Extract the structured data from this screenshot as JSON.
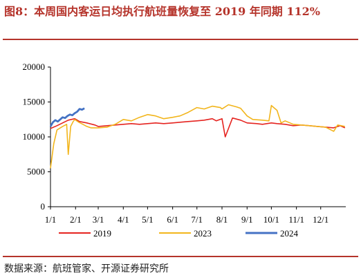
{
  "header": {
    "title": "图8：本周国内客运日均执行航班量恢复至 2019 年同期 112%"
  },
  "footer": {
    "source": "数据来源：航班管家、开源证券研究所"
  },
  "chart_data": {
    "type": "line",
    "title": "",
    "xlabel": "",
    "ylabel": "",
    "x_ticks": [
      "1/1",
      "2/1",
      "3/1",
      "4/1",
      "5/1",
      "6/1",
      "7/1",
      "8/1",
      "9/1",
      "10/1",
      "11/1",
      "12/1"
    ],
    "x_range_days": [
      0,
      365
    ],
    "ylim": [
      0,
      20000
    ],
    "y_ticks": [
      0,
      5000,
      10000,
      15000,
      20000
    ],
    "legend_position": "bottom",
    "grid": false,
    "series": [
      {
        "name": "2019",
        "color": "#e5231f",
        "x": [
          0,
          8,
          15,
          22,
          30,
          36,
          45,
          55,
          59,
          70,
          80,
          90,
          100,
          110,
          120,
          130,
          140,
          151,
          160,
          170,
          181,
          190,
          200,
          205,
          212,
          216,
          225,
          235,
          243,
          255,
          262,
          273,
          280,
          290,
          300,
          310,
          320,
          330,
          340,
          350,
          358,
          364
        ],
        "y": [
          11200,
          11600,
          12000,
          12400,
          12600,
          12200,
          12000,
          11700,
          11500,
          11600,
          11700,
          11800,
          11900,
          11800,
          11900,
          12000,
          11900,
          12000,
          12100,
          12200,
          12300,
          12400,
          12600,
          12300,
          12600,
          10000,
          12700,
          12400,
          12000,
          11900,
          11800,
          12000,
          11900,
          11800,
          11600,
          11700,
          11600,
          11500,
          11400,
          11300,
          11600,
          11300
        ]
      },
      {
        "name": "2023",
        "color": "#f2b51b",
        "x": [
          0,
          4,
          8,
          15,
          20,
          22,
          25,
          28,
          30,
          35,
          40,
          45,
          50,
          59,
          70,
          80,
          90,
          100,
          110,
          120,
          130,
          140,
          151,
          160,
          170,
          181,
          190,
          200,
          210,
          212,
          220,
          230,
          235,
          243,
          250,
          262,
          270,
          273,
          280,
          285,
          290,
          300,
          310,
          320,
          330,
          340,
          350,
          355,
          364
        ],
        "y": [
          5500,
          9000,
          11000,
          11500,
          11800,
          7500,
          11500,
          12200,
          12500,
          12100,
          11800,
          11500,
          11300,
          11300,
          11400,
          11800,
          12500,
          12300,
          12800,
          13200,
          13000,
          12600,
          12800,
          13000,
          13500,
          14200,
          14000,
          14400,
          14200,
          14000,
          14600,
          14300,
          14100,
          13000,
          12500,
          12400,
          12300,
          14500,
          13800,
          12000,
          12300,
          11800,
          11700,
          11600,
          11500,
          11400,
          10800,
          11700,
          11500
        ]
      },
      {
        "name": "2024",
        "color": "#4472c4",
        "x": [
          0,
          3,
          6,
          9,
          12,
          15,
          18,
          21,
          24,
          27,
          30,
          33,
          36,
          39,
          42
        ],
        "y": [
          11500,
          12100,
          12400,
          12200,
          12500,
          12800,
          12700,
          13000,
          13200,
          13100,
          13400,
          13600,
          14000,
          13900,
          14100
        ]
      }
    ]
  }
}
